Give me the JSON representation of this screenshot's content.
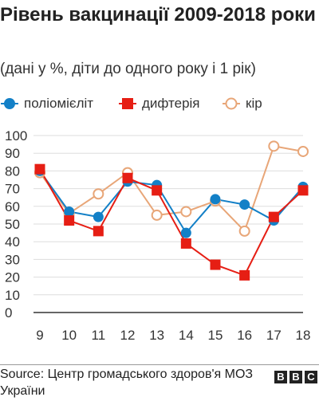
{
  "header": {
    "title": "Рівень вакцинації 2009-2018 роки",
    "subtitle": "(дані у %, діти до одного року і 1 рік)"
  },
  "footer": {
    "source": "Source: Центр громадського здоров'я МОЗ України",
    "logo": [
      "B",
      "B",
      "C"
    ]
  },
  "colors": {
    "polio": "#1380c7",
    "diphtheria": "#e61e14",
    "measles": "#e8a678",
    "grid": "#dddddd",
    "axis": "#333333"
  },
  "chart_data": {
    "type": "line",
    "categories": [
      "9",
      "10",
      "11",
      "12",
      "13",
      "14",
      "15",
      "16",
      "17",
      "18"
    ],
    "ylim": [
      0,
      100
    ],
    "yticks": [
      0,
      10,
      20,
      30,
      40,
      50,
      60,
      70,
      80,
      90,
      100
    ],
    "grid": true,
    "legend_position": "top",
    "series": [
      {
        "name": "поліомієліт",
        "color": "#1380c7",
        "marker": "circle",
        "values": [
          80,
          57,
          54,
          74,
          72,
          45,
          64,
          61,
          52,
          71
        ]
      },
      {
        "name": "дифтерія",
        "color": "#e61e14",
        "marker": "square",
        "values": [
          81,
          52,
          46,
          76,
          69,
          39,
          27,
          21,
          54,
          69
        ]
      },
      {
        "name": "кір",
        "color": "#e8a678",
        "marker": "open-circle",
        "values": [
          79,
          56,
          67,
          79,
          55,
          57,
          63,
          46,
          94,
          91
        ]
      }
    ]
  }
}
